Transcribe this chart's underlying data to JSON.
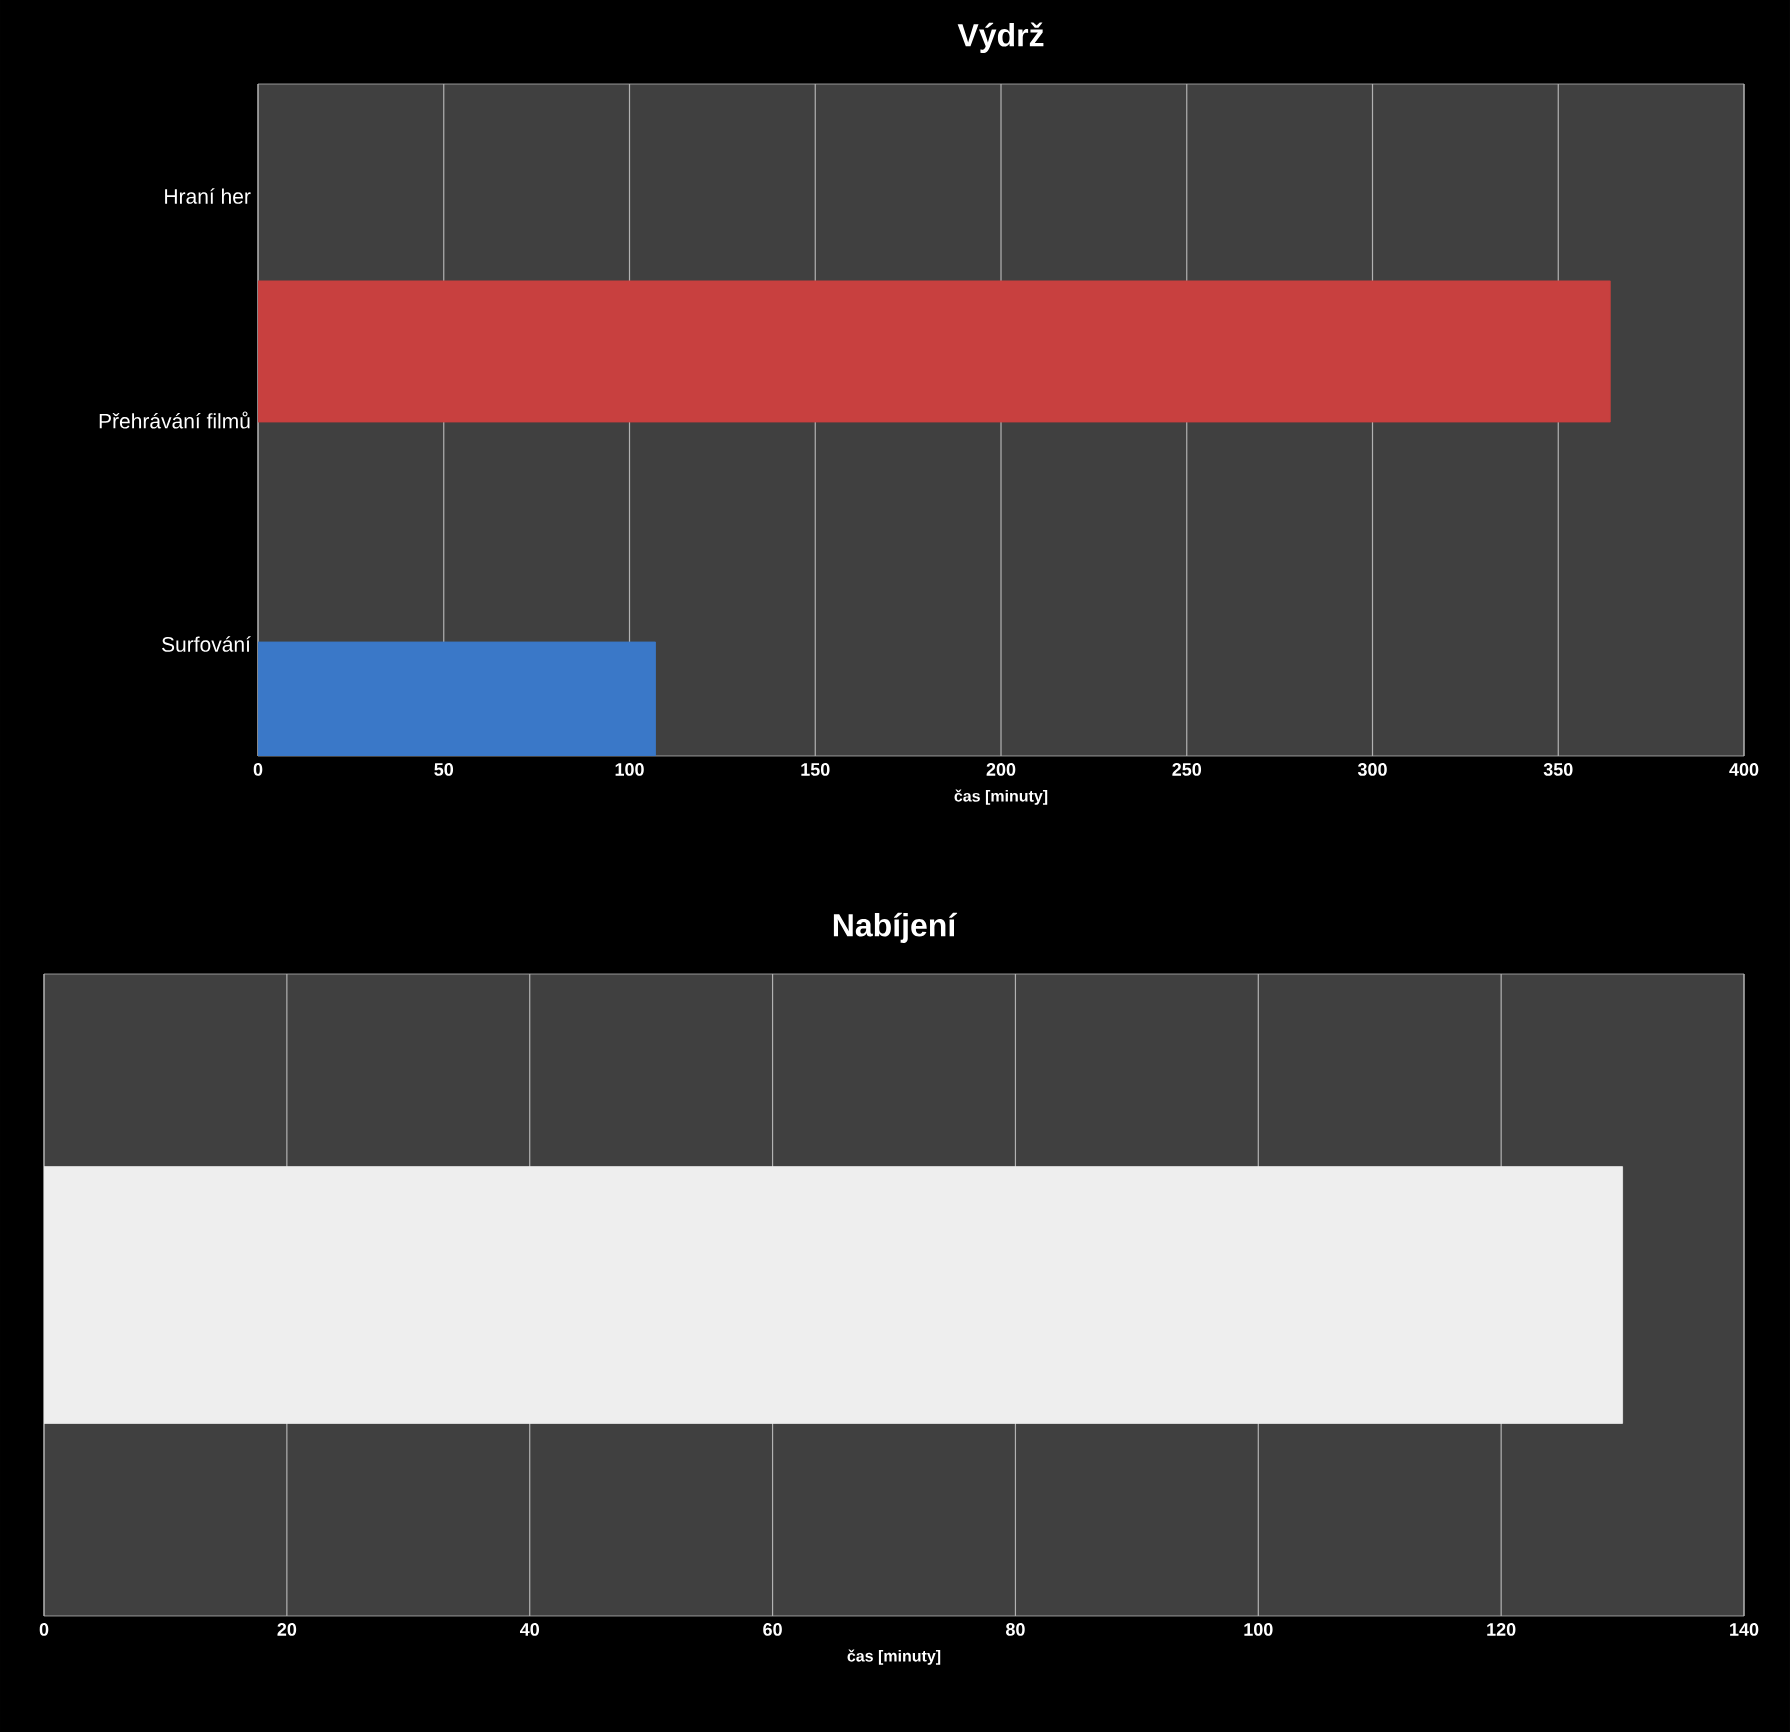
{
  "chart_data": [
    {
      "type": "bar",
      "orientation": "horizontal",
      "title": "Výdrž",
      "xlabel": "čas [minuty]",
      "categories": [
        "Hraní her",
        "Přehrávání filmů",
        "Surfování"
      ],
      "values": [
        null,
        364,
        107
      ],
      "colors": [
        "#c0504d",
        "#c8403f",
        "#3a78c8"
      ],
      "xlim": [
        0,
        400
      ],
      "xticks": [
        0,
        50,
        100,
        150,
        200,
        250,
        300,
        350,
        400
      ],
      "grid": "x"
    },
    {
      "type": "bar",
      "orientation": "horizontal",
      "title": "Nabíjení",
      "xlabel": "čas [minuty]",
      "categories": [
        null
      ],
      "values": [
        130
      ],
      "colors": [
        "#eeeeee"
      ],
      "xlim": [
        0,
        140
      ],
      "xticks": [
        0,
        20,
        40,
        60,
        80,
        100,
        120,
        140
      ],
      "grid": "x",
      "tick_labels": "x"
    }
  ]
}
